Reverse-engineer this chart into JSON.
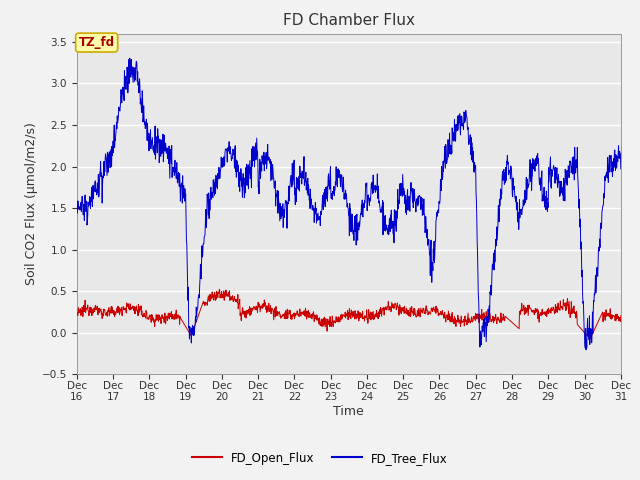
{
  "title": "FD Chamber Flux",
  "xlabel": "Time",
  "ylabel": "Soil CO2 Flux (μmol/m2/s)",
  "ylim": [
    -0.5,
    3.6
  ],
  "xlim_days": [
    16,
    31
  ],
  "x_tick_labels": [
    "Dec 16",
    "Dec 17",
    "Dec 18",
    "Dec 19",
    "Dec 20",
    "Dec 21",
    "Dec 22",
    "Dec 23",
    "Dec 24",
    "Dec 25",
    "Dec 26",
    "Dec 27",
    "Dec 28",
    "Dec 29",
    "Dec 30",
    "Dec 31"
  ],
  "yticks": [
    -0.5,
    0.0,
    0.5,
    1.0,
    1.5,
    2.0,
    2.5,
    3.0,
    3.5
  ],
  "plot_bg_color": "#e8e8e8",
  "fig_bg_color": "#f2f2f2",
  "grid_color": "#ffffff",
  "open_flux_color": "#cc0000",
  "tree_flux_color": "#0000cc",
  "annotation_text": "TZ_fd",
  "annotation_bg": "#ffffaa",
  "annotation_border": "#ccaa00",
  "legend_red_label": "FD_Open_Flux",
  "legend_blue_label": "FD_Tree_Flux",
  "title_fontsize": 11,
  "axis_label_fontsize": 9,
  "tick_fontsize": 7.5
}
